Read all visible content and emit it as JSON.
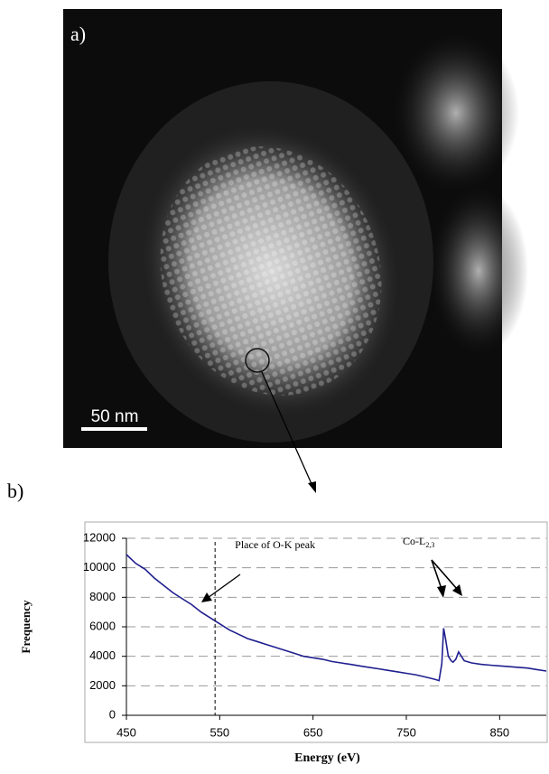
{
  "panels": {
    "a": {
      "label": "a)",
      "scale_bar": "50 nm"
    },
    "b": {
      "label": "b)"
    }
  },
  "chart_data": {
    "type": "line",
    "xlabel": "Energy (eV)",
    "ylabel": "Frequency",
    "xlim": [
      450,
      900
    ],
    "ylim": [
      0,
      12000
    ],
    "xticks": [
      450,
      550,
      650,
      750,
      850
    ],
    "yticks": [
      0,
      2000,
      4000,
      6000,
      8000,
      10000,
      12000
    ],
    "grid": true,
    "annotations": [
      {
        "text": "Place of O-K peak",
        "x": 545
      },
      {
        "text": "Co-L",
        "subscript": "2,3"
      }
    ],
    "series": [
      {
        "color": "#1f1f8f",
        "x": [
          450,
          460,
          470,
          480,
          490,
          500,
          510,
          520,
          530,
          540,
          550,
          560,
          570,
          580,
          590,
          600,
          610,
          620,
          630,
          640,
          650,
          660,
          670,
          680,
          690,
          700,
          710,
          720,
          730,
          740,
          750,
          760,
          770,
          780,
          785,
          788,
          790,
          792,
          795,
          798,
          800,
          803,
          806,
          808,
          812,
          820,
          830,
          840,
          850,
          860,
          870,
          880,
          890,
          900
        ],
        "values": [
          10900,
          10300,
          9900,
          9300,
          8800,
          8300,
          7900,
          7500,
          7000,
          6600,
          6200,
          5800,
          5500,
          5200,
          5000,
          4800,
          4600,
          4400,
          4200,
          4000,
          3900,
          3800,
          3650,
          3550,
          3450,
          3350,
          3250,
          3150,
          3050,
          2950,
          2850,
          2750,
          2600,
          2450,
          2350,
          3500,
          5900,
          5200,
          4000,
          3700,
          3600,
          3800,
          4300,
          4100,
          3700,
          3550,
          3450,
          3400,
          3350,
          3300,
          3250,
          3200,
          3100,
          3000
        ]
      }
    ]
  }
}
